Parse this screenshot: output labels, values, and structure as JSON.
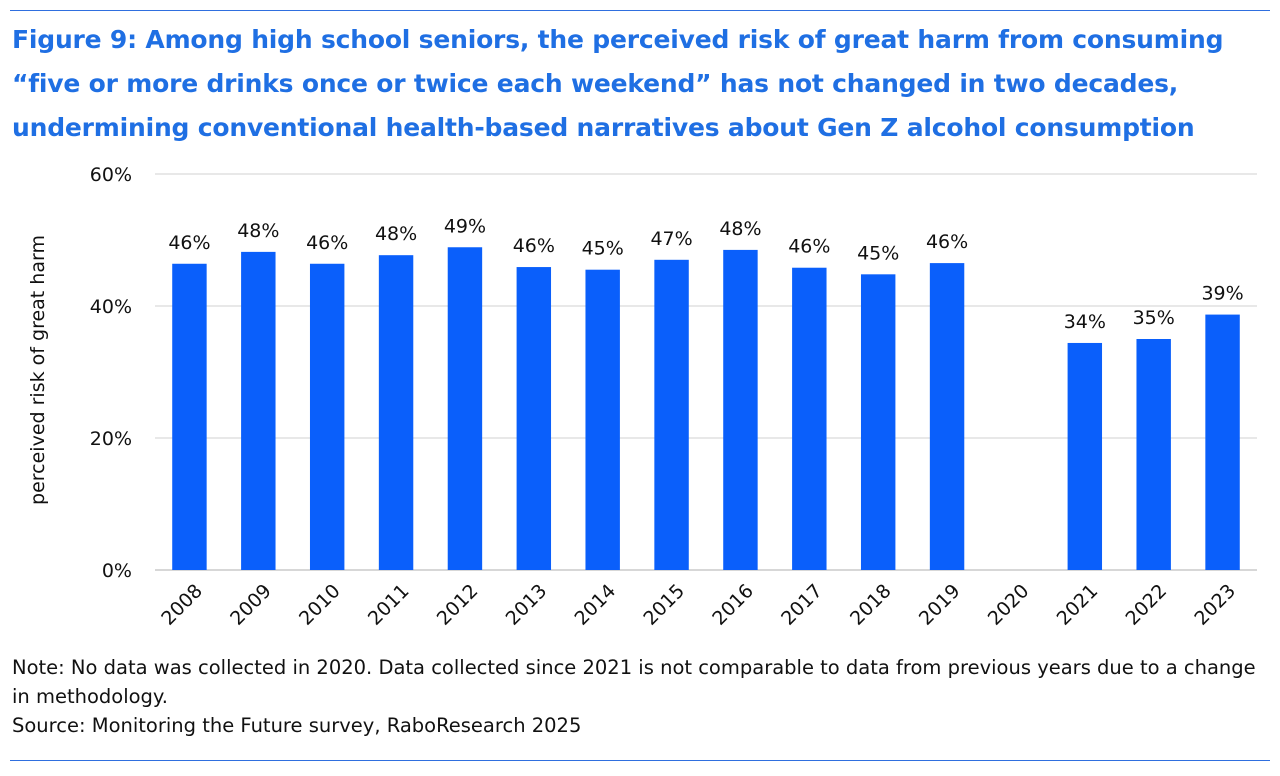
{
  "title": "Figure 9: Among high school seniors, the perceived risk of great harm from consuming “five or more drinks once or twice each weekend” has not changed in two decades, undermining conventional health-based narratives about Gen Z alcohol consumption",
  "note": "Note: No data was collected in 2020. Data collected since 2021 is not comparable to data from previous years due to a change in methodology.",
  "source": "Source: Monitoring the Future survey, RaboResearch 2025",
  "colors": {
    "bar": "#0a5ffb",
    "title": "#1f6fe3",
    "grid": "#d9d9d9",
    "rule": "#2f6fdf"
  },
  "chart_data": {
    "type": "bar",
    "title": "",
    "xlabel": "",
    "ylabel": "perceived risk of great harm",
    "categories": [
      "2008",
      "2009",
      "2010",
      "2011",
      "2012",
      "2013",
      "2014",
      "2015",
      "2016",
      "2017",
      "2018",
      "2019",
      "2020",
      "2021",
      "2022",
      "2023"
    ],
    "values": [
      46.4,
      48.2,
      46.4,
      47.7,
      48.9,
      45.9,
      45.5,
      47.0,
      48.5,
      45.8,
      44.8,
      46.5,
      null,
      34.4,
      35.0,
      38.7
    ],
    "data_labels": [
      "46%",
      "48%",
      "46%",
      "48%",
      "49%",
      "46%",
      "45%",
      "47%",
      "48%",
      "46%",
      "45%",
      "46%",
      "",
      "34%",
      "35%",
      "39%"
    ],
    "ylim": [
      0,
      60
    ],
    "yticks": [
      0,
      20,
      40,
      60
    ],
    "ytick_labels": [
      "0%",
      "20%",
      "40%",
      "60%"
    ],
    "grid": true,
    "legend": "none"
  }
}
